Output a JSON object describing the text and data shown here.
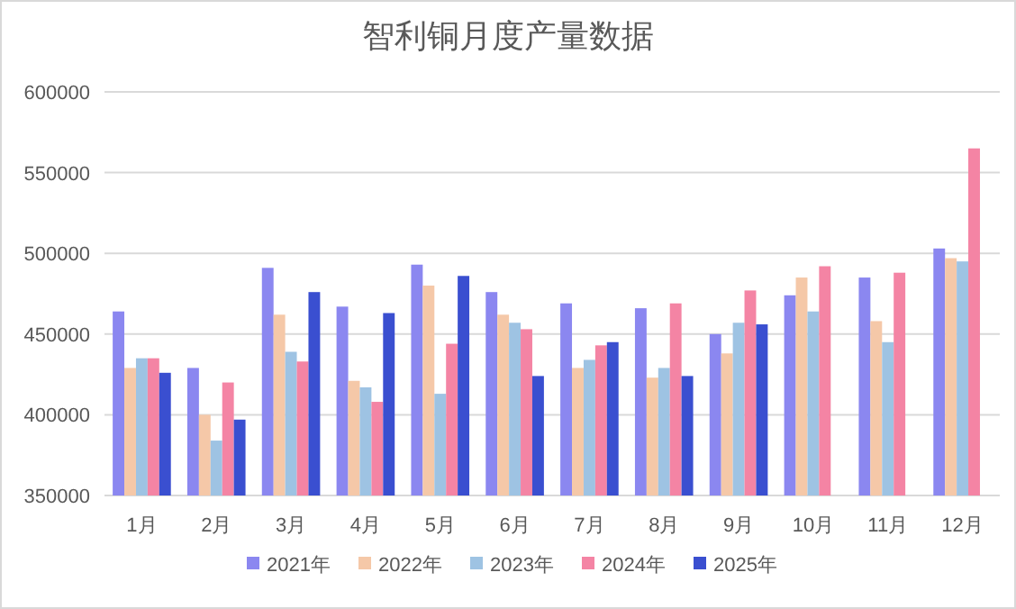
{
  "chart_data": {
    "type": "bar",
    "title": "智利铜月度产量数据",
    "categories": [
      "1月",
      "2月",
      "3月",
      "4月",
      "5月",
      "6月",
      "7月",
      "8月",
      "9月",
      "10月",
      "11月",
      "12月"
    ],
    "series": [
      {
        "name": "2021年",
        "color": "#8b87f0",
        "values": [
          464000,
          429000,
          491000,
          467000,
          493000,
          476000,
          469000,
          466000,
          450000,
          474000,
          485000,
          503000
        ]
      },
      {
        "name": "2022年",
        "color": "#f5c8a8",
        "values": [
          429000,
          400000,
          462000,
          421000,
          480000,
          462000,
          429000,
          423000,
          438000,
          485000,
          458000,
          497000
        ]
      },
      {
        "name": "2023年",
        "color": "#9ec3e3",
        "values": [
          435000,
          384000,
          439000,
          417000,
          413000,
          457000,
          434000,
          429000,
          457000,
          464000,
          445000,
          495000
        ]
      },
      {
        "name": "2024年",
        "color": "#f484a4",
        "values": [
          435000,
          420000,
          433000,
          408000,
          444000,
          453000,
          443000,
          469000,
          477000,
          492000,
          488000,
          565000
        ]
      },
      {
        "name": "2025年",
        "color": "#3a4fd0",
        "values": [
          426000,
          397000,
          476000,
          463000,
          486000,
          424000,
          445000,
          424000,
          456000,
          null,
          null,
          null
        ]
      }
    ],
    "ylim": [
      350000,
      600000
    ],
    "yticks": [
      350000,
      400000,
      450000,
      500000,
      550000,
      600000
    ],
    "grid": "y",
    "legend": "bottom"
  }
}
